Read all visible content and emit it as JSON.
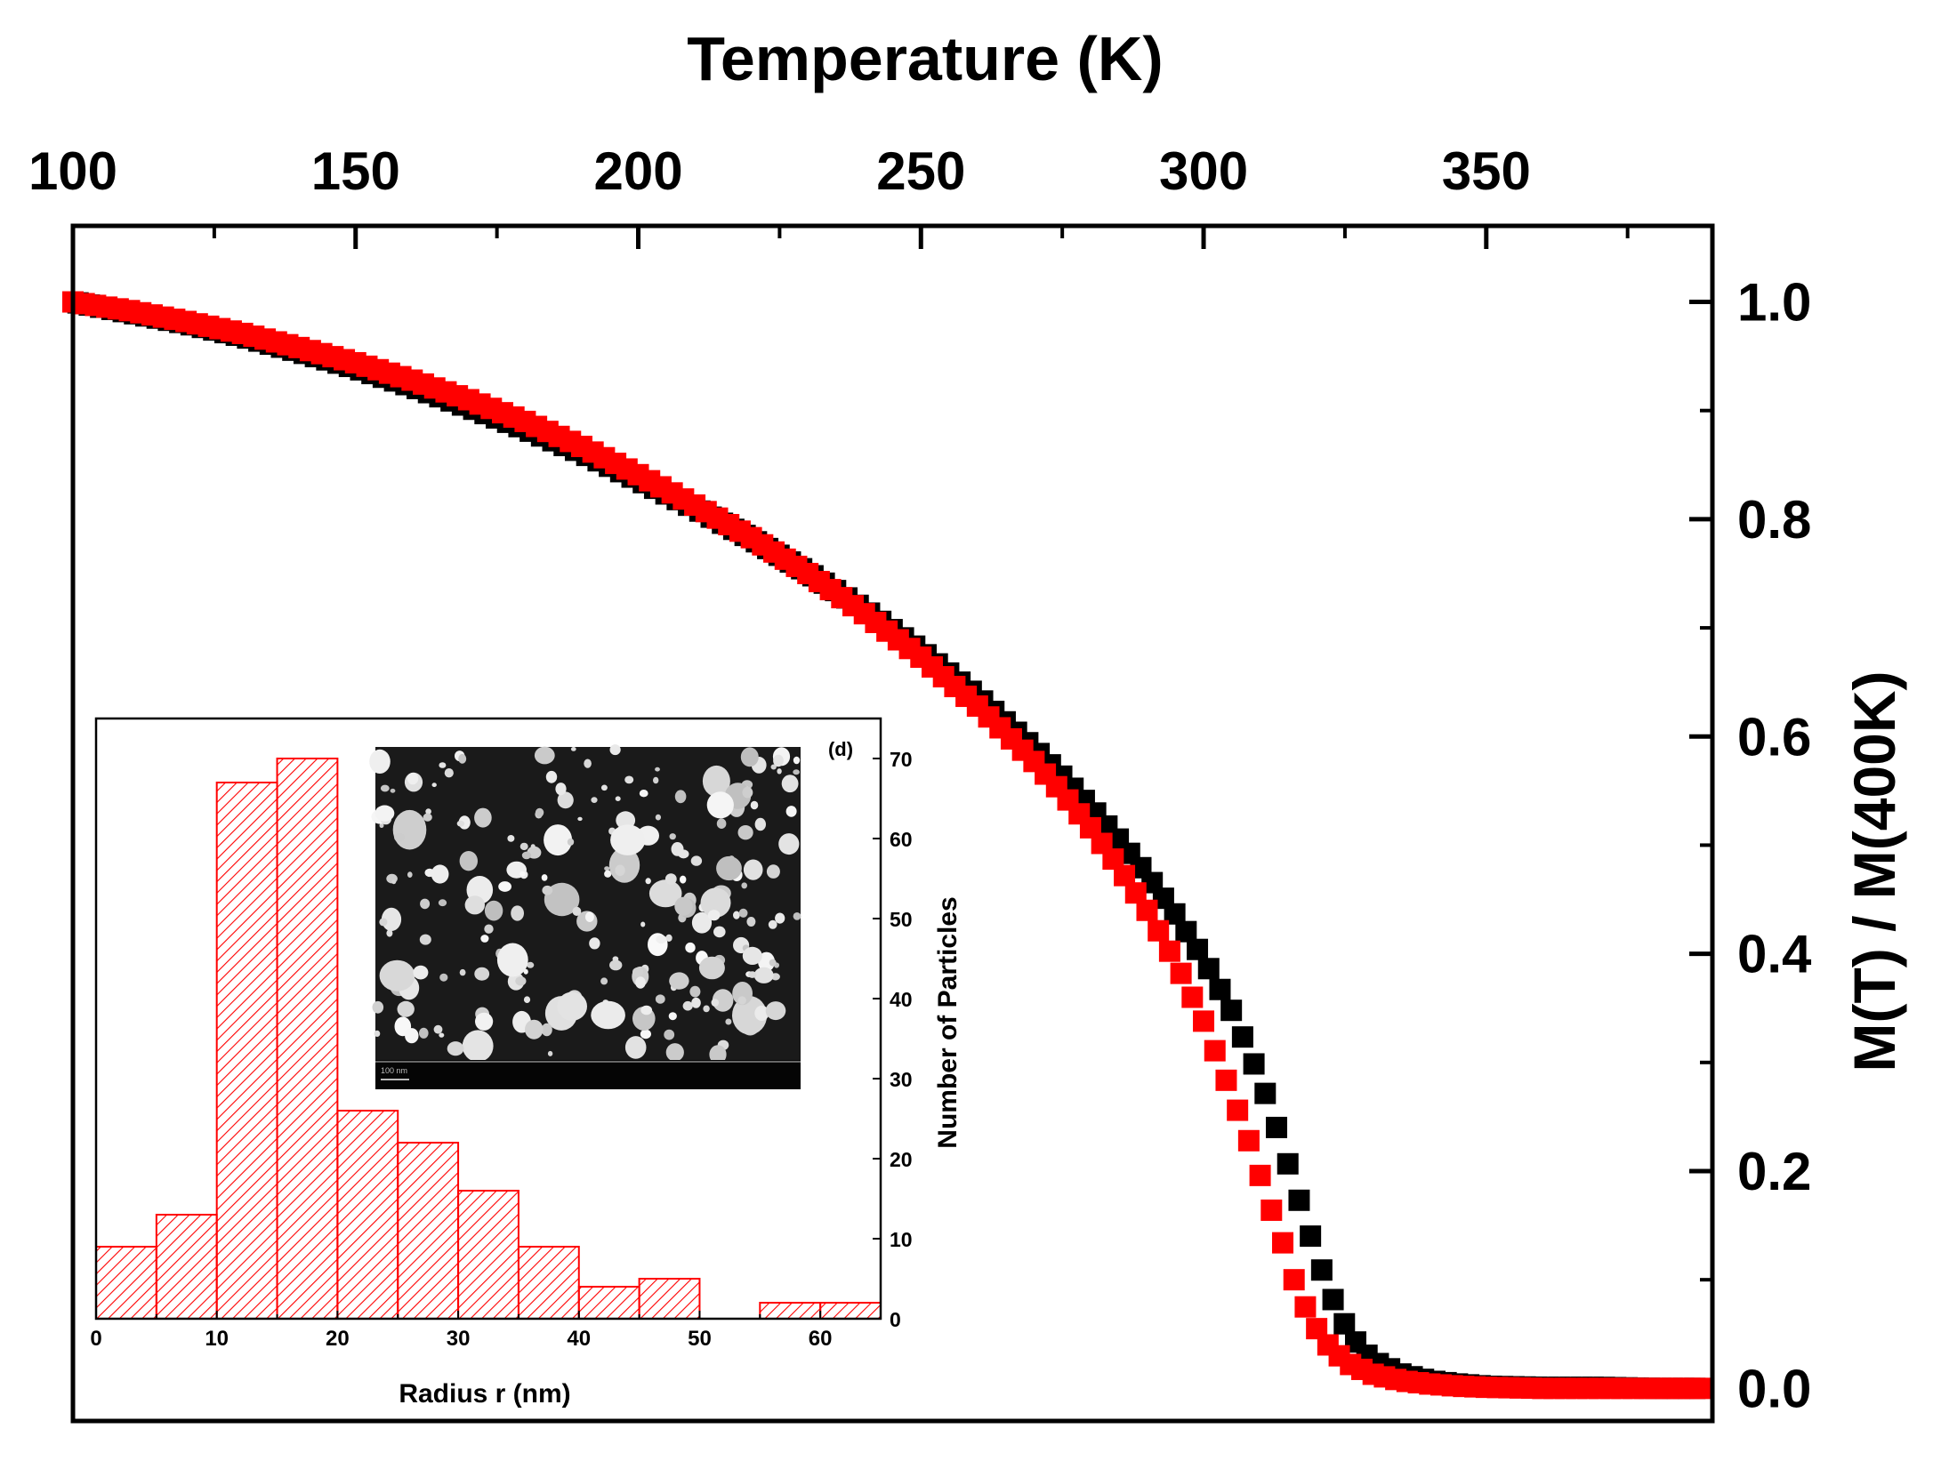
{
  "colors": {
    "background": "#ffffff",
    "axis": "#000000",
    "series_fc": "#000000",
    "series_zfc": "#ff0000",
    "hist": "#ff0000",
    "sem_bg": "#1a1a1a",
    "sem_particle": "#d8d8d8"
  },
  "chart_data": [
    {
      "type": "scatter",
      "title": "",
      "xlabel": "Temperature (K)",
      "ylabel": "M(T) / M(400K)",
      "xlim": [
        100,
        390
      ],
      "ylim": [
        -0.03,
        1.07
      ],
      "x_axis_position": "top",
      "y_axis_position": "right",
      "xticks": [
        100,
        150,
        200,
        250,
        300,
        350
      ],
      "xtick_labels": [
        "100",
        "150",
        "200",
        "250",
        "300",
        "350"
      ],
      "yticks": [
        0.0,
        0.2,
        0.4,
        0.6,
        0.8,
        1.0
      ],
      "ytick_labels": [
        "0.0",
        "0.2",
        "0.4",
        "0.6",
        "0.8",
        "1.0"
      ],
      "grid": false,
      "series": [
        {
          "name": "black squares",
          "marker": "square",
          "x": [
            100,
            110,
            120,
            130,
            140,
            150,
            160,
            170,
            180,
            190,
            200,
            210,
            220,
            230,
            240,
            250,
            260,
            265,
            270,
            275,
            280,
            285,
            290,
            295,
            300,
            305,
            310,
            312,
            314,
            316,
            318,
            320,
            322,
            324,
            326,
            328,
            330,
            335,
            340,
            345,
            350,
            360,
            370,
            380,
            390
          ],
          "y": [
            1.0,
            0.99,
            0.98,
            0.968,
            0.954,
            0.939,
            0.922,
            0.903,
            0.883,
            0.861,
            0.836,
            0.81,
            0.782,
            0.751,
            0.717,
            0.679,
            0.637,
            0.613,
            0.589,
            0.563,
            0.535,
            0.505,
            0.472,
            0.436,
            0.395,
            0.347,
            0.285,
            0.255,
            0.222,
            0.188,
            0.155,
            0.122,
            0.093,
            0.068,
            0.049,
            0.035,
            0.025,
            0.013,
            0.007,
            0.004,
            0.002,
            0.001,
            0.001,
            0.0,
            0.0
          ]
        },
        {
          "name": "red squares",
          "marker": "square",
          "x": [
            100,
            110,
            120,
            130,
            140,
            150,
            160,
            170,
            180,
            190,
            200,
            210,
            220,
            230,
            240,
            250,
            260,
            265,
            270,
            275,
            280,
            285,
            290,
            295,
            300,
            305,
            308,
            310,
            312,
            314,
            316,
            318,
            320,
            322,
            324,
            326,
            330,
            335,
            340,
            345,
            350,
            360,
            370,
            380,
            390
          ],
          "y": [
            1.0,
            0.992,
            0.982,
            0.971,
            0.958,
            0.944,
            0.928,
            0.91,
            0.89,
            0.867,
            0.841,
            0.813,
            0.783,
            0.75,
            0.713,
            0.673,
            0.628,
            0.603,
            0.577,
            0.548,
            0.516,
            0.48,
            0.44,
            0.393,
            0.338,
            0.27,
            0.228,
            0.196,
            0.164,
            0.134,
            0.1,
            0.075,
            0.055,
            0.04,
            0.03,
            0.022,
            0.013,
            0.007,
            0.004,
            0.002,
            0.001,
            0.0,
            0.0,
            0.0,
            0.0
          ]
        }
      ]
    },
    {
      "type": "bar",
      "title": "",
      "panel_label": "(d)",
      "xlabel": "Radius r (nm)",
      "ylabel": "Number of Particles",
      "xlim": [
        0,
        65
      ],
      "ylim": [
        0,
        75
      ],
      "xticks": [
        0,
        10,
        20,
        30,
        40,
        50,
        60
      ],
      "xtick_labels": [
        "0",
        "10",
        "20",
        "30",
        "40",
        "50",
        "60"
      ],
      "yticks": [
        0,
        10,
        20,
        30,
        40,
        50,
        60,
        70
      ],
      "ytick_labels": [
        "0",
        "10",
        "20",
        "30",
        "40",
        "50",
        "60",
        "70"
      ],
      "y_axis_position": "right",
      "bin_width": 5,
      "bin_starts": [
        0,
        5,
        10,
        15,
        20,
        25,
        30,
        35,
        40,
        45,
        50,
        55,
        60
      ],
      "values": [
        9,
        13,
        67,
        70,
        26,
        22,
        16,
        9,
        4,
        5,
        0,
        2,
        2
      ]
    }
  ],
  "sem_image": {
    "scale_label": "100 nm"
  }
}
